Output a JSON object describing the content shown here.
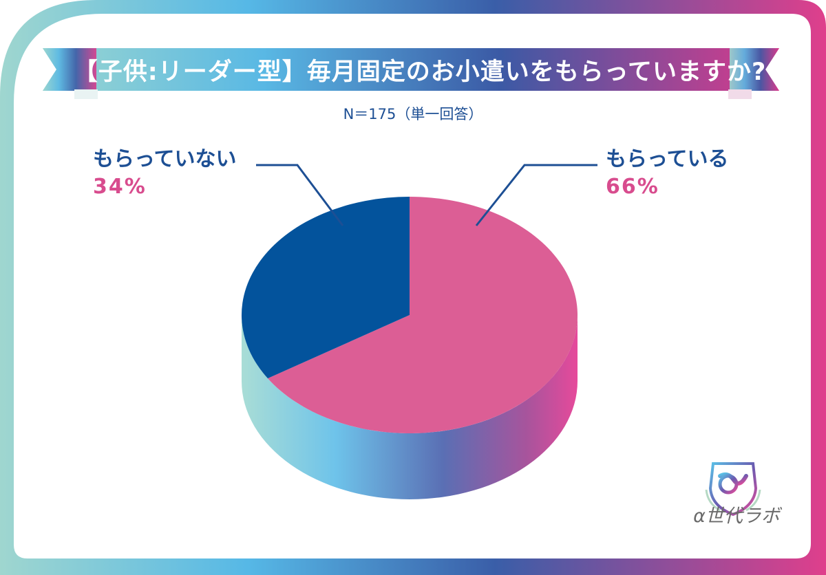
{
  "title": "【子供:リーダー型】毎月固定のお小遣いをもらっていますか?",
  "subtitle": "N＝175（単一回答）",
  "brand": "α世代ラボ",
  "colors": {
    "receiving": "#dc5e95",
    "not_receiving": "#03539c",
    "label_text": "#1d4f94",
    "percent_text": "#d84c8e"
  },
  "chart_data": {
    "type": "pie",
    "title": "【子供:リーダー型】毎月固定のお小遣いをもらっていますか?",
    "n": 175,
    "categories": [
      "もらっている",
      "もらっていない"
    ],
    "values": [
      66,
      34
    ],
    "value_labels": [
      "66%",
      "34%"
    ],
    "unit": "%"
  }
}
